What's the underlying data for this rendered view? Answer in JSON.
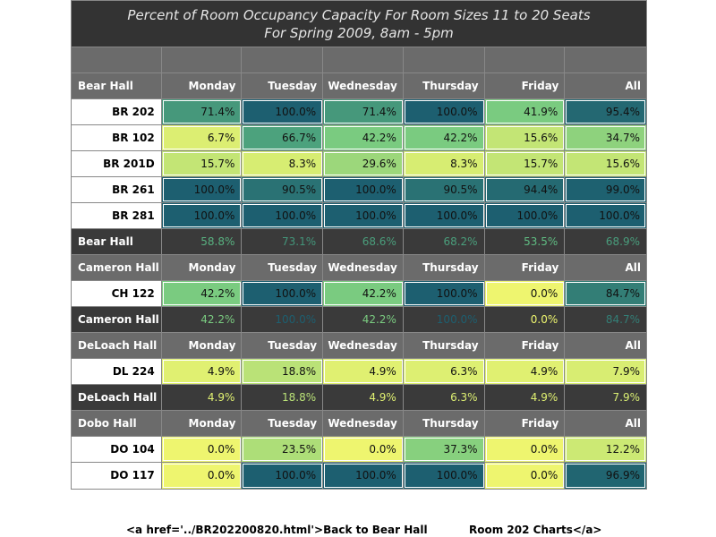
{
  "title_line1": "Percent of Room Occupancy Capacity For Room Sizes 11 to 20 Seats",
  "title_line2": "For Spring 2009, 8am - 5pm",
  "colors": {
    "scale_low": "#eef56f",
    "scale_mid": "#64c383",
    "scale_high": "#1d5f70",
    "header_bg": "#6b6b6b",
    "summary_bg": "#3a3a3a"
  },
  "columns": [
    "Monday",
    "Tuesday",
    "Wednesday",
    "Thursday",
    "Friday",
    "All"
  ],
  "sections": [
    {
      "hall": "Bear Hall",
      "rooms": [
        {
          "room": "BR 202",
          "values": [
            "71.4%",
            "100.0%",
            "71.4%",
            "100.0%",
            "41.9%",
            "95.4%"
          ],
          "levels": [
            71.4,
            100.0,
            71.4,
            100.0,
            41.9,
            95.4
          ]
        },
        {
          "room": "BR 102",
          "values": [
            "6.7%",
            "66.7%",
            "42.2%",
            "42.2%",
            "15.6%",
            "34.7%"
          ],
          "levels": [
            6.7,
            66.7,
            42.2,
            42.2,
            15.6,
            34.7
          ]
        },
        {
          "room": "BR 201D",
          "values": [
            "15.7%",
            "8.3%",
            "29.6%",
            "8.3%",
            "15.7%",
            "15.6%"
          ],
          "levels": [
            15.7,
            8.3,
            29.6,
            8.3,
            15.7,
            15.6
          ]
        },
        {
          "room": "BR 261",
          "values": [
            "100.0%",
            "90.5%",
            "100.0%",
            "90.5%",
            "94.4%",
            "99.0%"
          ],
          "levels": [
            100.0,
            90.5,
            100.0,
            90.5,
            94.4,
            99.0
          ]
        },
        {
          "room": "BR 281",
          "values": [
            "100.0%",
            "100.0%",
            "100.0%",
            "100.0%",
            "100.0%",
            "100.0%"
          ],
          "levels": [
            100.0,
            100.0,
            100.0,
            100.0,
            100.0,
            100.0
          ]
        }
      ],
      "summary": {
        "label": "Bear Hall",
        "values": [
          "58.8%",
          "73.1%",
          "68.6%",
          "68.2%",
          "53.5%",
          "68.9%"
        ],
        "levels": [
          58.8,
          73.1,
          68.6,
          68.2,
          53.5,
          68.9
        ]
      }
    },
    {
      "hall": "Cameron Hall",
      "rooms": [
        {
          "room": "CH 122",
          "values": [
            "42.2%",
            "100.0%",
            "42.2%",
            "100.0%",
            "0.0%",
            "84.7%"
          ],
          "levels": [
            42.2,
            100.0,
            42.2,
            100.0,
            0.0,
            84.7
          ]
        }
      ],
      "summary": {
        "label": "Cameron Hall",
        "values": [
          "42.2%",
          "100.0%",
          "42.2%",
          "100.0%",
          "0.0%",
          "84.7%"
        ],
        "levels": [
          42.2,
          100.0,
          42.2,
          100.0,
          0.0,
          84.7
        ]
      }
    },
    {
      "hall": "DeLoach Hall",
      "rooms": [
        {
          "room": "DL 224",
          "values": [
            "4.9%",
            "18.8%",
            "4.9%",
            "6.3%",
            "4.9%",
            "7.9%"
          ],
          "levels": [
            4.9,
            18.8,
            4.9,
            6.3,
            4.9,
            7.9
          ]
        }
      ],
      "summary": {
        "label": "DeLoach Hall",
        "values": [
          "4.9%",
          "18.8%",
          "4.9%",
          "6.3%",
          "4.9%",
          "7.9%"
        ],
        "levels": [
          4.9,
          18.8,
          4.9,
          6.3,
          4.9,
          7.9
        ]
      }
    },
    {
      "hall": "Dobo Hall",
      "rooms": [
        {
          "room": "DO 104",
          "values": [
            "0.0%",
            "23.5%",
            "0.0%",
            "37.3%",
            "0.0%",
            "12.2%"
          ],
          "levels": [
            0.0,
            23.5,
            0.0,
            37.3,
            0.0,
            12.2
          ]
        },
        {
          "room": "DO 117",
          "values": [
            "0.0%",
            "100.0%",
            "100.0%",
            "100.0%",
            "0.0%",
            "96.9%"
          ],
          "levels": [
            0.0,
            100.0,
            100.0,
            100.0,
            0.0,
            96.9
          ]
        }
      ]
    }
  ],
  "footer": {
    "left": "<a href='../BR202200820.html'>Back to Bear Hall",
    "right": "Room 202 Charts</a>"
  }
}
